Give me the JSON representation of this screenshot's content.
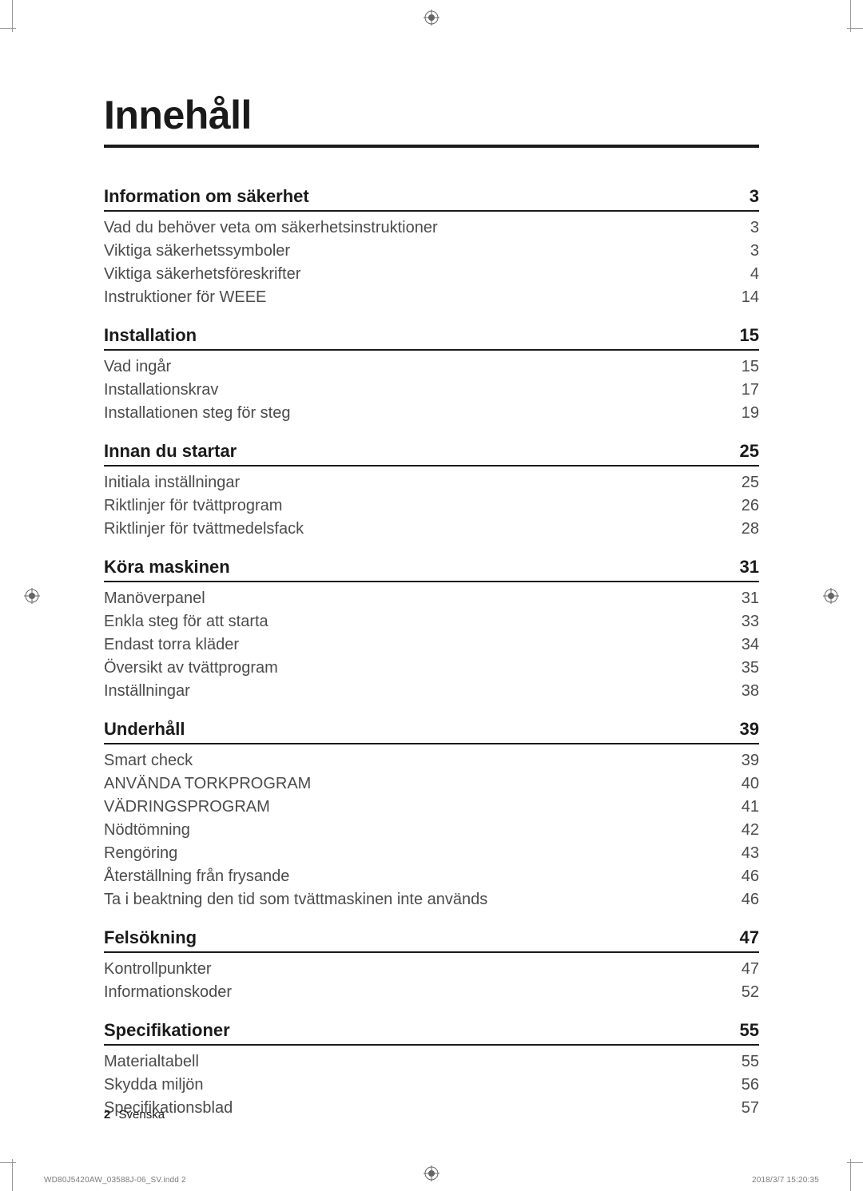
{
  "colors": {
    "text": "#4b4b4b",
    "heading": "#1a1a1a",
    "rule_thick": "#1a1a1a",
    "crop": "#9a9a9a",
    "bg": "#ffffff"
  },
  "typography": {
    "title_fontsize": 50,
    "section_fontsize": 22,
    "item_fontsize": 20,
    "footer_fontsize": 15,
    "printinfo_fontsize": 10
  },
  "title": "Innehåll",
  "page_number": "2",
  "page_label": "Svenska",
  "print_footer": {
    "left": "WD80J5420AW_03588J-06_SV.indd   2",
    "right": "2018/3/7   15:20:35"
  },
  "sections": [
    {
      "heading": "Information om säkerhet",
      "page": "3",
      "items": [
        {
          "label": "Vad du behöver veta om säkerhetsinstruktioner",
          "page": "3"
        },
        {
          "label": "Viktiga säkerhetssymboler",
          "page": "3"
        },
        {
          "label": "Viktiga säkerhetsföreskrifter",
          "page": "4"
        },
        {
          "label": "Instruktioner för WEEE",
          "page": "14"
        }
      ]
    },
    {
      "heading": "Installation",
      "page": "15",
      "items": [
        {
          "label": "Vad ingår",
          "page": "15"
        },
        {
          "label": "Installationskrav",
          "page": "17"
        },
        {
          "label": "Installationen steg för steg",
          "page": "19"
        }
      ]
    },
    {
      "heading": "Innan du startar",
      "page": "25",
      "items": [
        {
          "label": "Initiala inställningar",
          "page": "25"
        },
        {
          "label": "Riktlinjer för tvättprogram",
          "page": "26"
        },
        {
          "label": "Riktlinjer för tvättmedelsfack",
          "page": "28"
        }
      ]
    },
    {
      "heading": "Köra maskinen",
      "page": "31",
      "items": [
        {
          "label": "Manöverpanel",
          "page": "31"
        },
        {
          "label": "Enkla steg för att starta",
          "page": "33"
        },
        {
          "label": "Endast torra kläder",
          "page": "34"
        },
        {
          "label": "Översikt av tvättprogram",
          "page": "35"
        },
        {
          "label": "Inställningar",
          "page": "38"
        }
      ]
    },
    {
      "heading": "Underhåll",
      "page": "39",
      "items": [
        {
          "label": "Smart check",
          "page": "39"
        },
        {
          "label": "ANVÄNDA TORKPROGRAM",
          "page": "40"
        },
        {
          "label": "VÄDRINGSPROGRAM",
          "page": "41"
        },
        {
          "label": "Nödtömning",
          "page": "42"
        },
        {
          "label": "Rengöring",
          "page": "43"
        },
        {
          "label": "Återställning från frysande",
          "page": "46"
        },
        {
          "label": "Ta i beaktning den tid som tvättmaskinen inte används",
          "page": "46"
        }
      ]
    },
    {
      "heading": "Felsökning",
      "page": "47",
      "items": [
        {
          "label": "Kontrollpunkter",
          "page": "47"
        },
        {
          "label": "Informationskoder",
          "page": "52"
        }
      ]
    },
    {
      "heading": "Specifikationer",
      "page": "55",
      "items": [
        {
          "label": "Materialtabell",
          "page": "55"
        },
        {
          "label": "Skydda miljön",
          "page": "56"
        },
        {
          "label": "Specifikationsblad",
          "page": "57"
        }
      ]
    }
  ]
}
